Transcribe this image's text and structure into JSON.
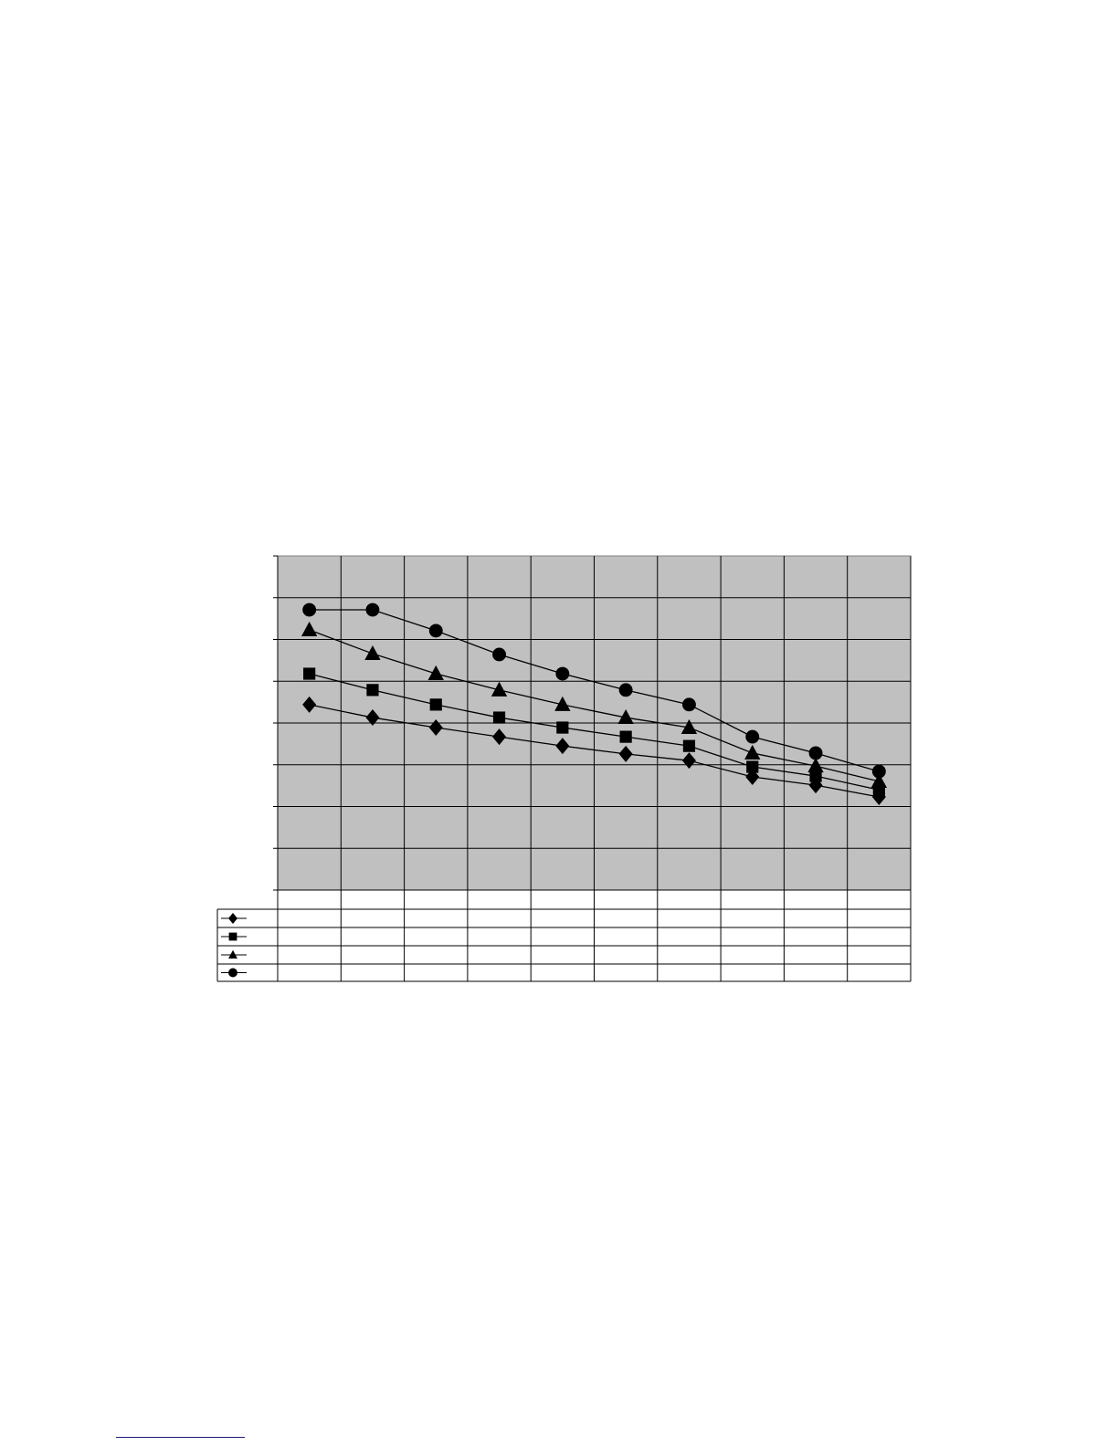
{
  "chart_data": {
    "type": "line",
    "title": "",
    "xlabel": "",
    "ylabel": "",
    "categories": [
      "",
      "",
      "",
      "",
      "",
      "",
      "",
      "",
      "",
      ""
    ],
    "ylim": [
      0,
      8
    ],
    "grid": true,
    "plot_background": "#c0c0c0",
    "line_color": "#000000",
    "legend_placement": "data-table-bottom-left",
    "series": [
      {
        "marker": "diamond",
        "values": [
          4.44,
          4.13,
          3.89,
          3.67,
          3.45,
          3.26,
          3.1,
          2.71,
          2.51,
          2.23
        ]
      },
      {
        "marker": "square",
        "values": [
          5.18,
          4.79,
          4.44,
          4.13,
          3.89,
          3.67,
          3.45,
          2.95,
          2.73,
          2.4
        ]
      },
      {
        "marker": "triangle",
        "values": [
          6.23,
          5.66,
          5.18,
          4.79,
          4.44,
          4.13,
          3.89,
          3.28,
          2.97,
          2.6
        ]
      },
      {
        "marker": "circle",
        "values": [
          6.71,
          6.71,
          6.21,
          5.64,
          5.18,
          4.79,
          4.44,
          3.67,
          3.28,
          2.84
        ]
      }
    ]
  },
  "footer": {
    "link_color": "#1a1a80"
  }
}
